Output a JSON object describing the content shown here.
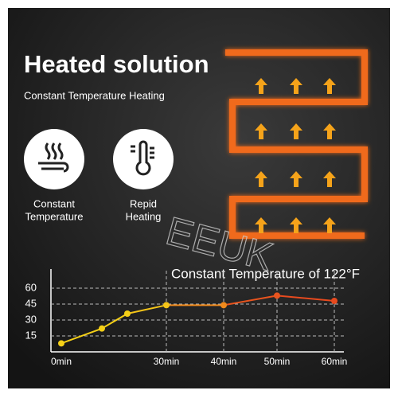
{
  "header": {
    "title": "Heated solution",
    "subtitle": "Constant Temperature Heating"
  },
  "features": [
    {
      "lines": [
        "Constant",
        "Temperature"
      ]
    },
    {
      "lines": [
        "Repid",
        "Heating"
      ]
    }
  ],
  "watermark": "EEUK",
  "chart_data": {
    "type": "line",
    "title": "Constant Temperature of 122°F",
    "categories": [
      "0min",
      null,
      null,
      "30min",
      "40min",
      "50min",
      "60min"
    ],
    "series": [
      {
        "values": [
          8,
          22,
          36,
          44,
          44,
          53,
          48
        ],
        "point_colors": [
          "#f5d017",
          "#f5d017",
          "#f5d017",
          "#f5c518",
          "#f08a1c",
          "#e8541e",
          "#e84a1e"
        ]
      }
    ],
    "ylim": [
      0,
      75
    ],
    "yticks": [
      15,
      30,
      45,
      60
    ],
    "grid": true
  }
}
